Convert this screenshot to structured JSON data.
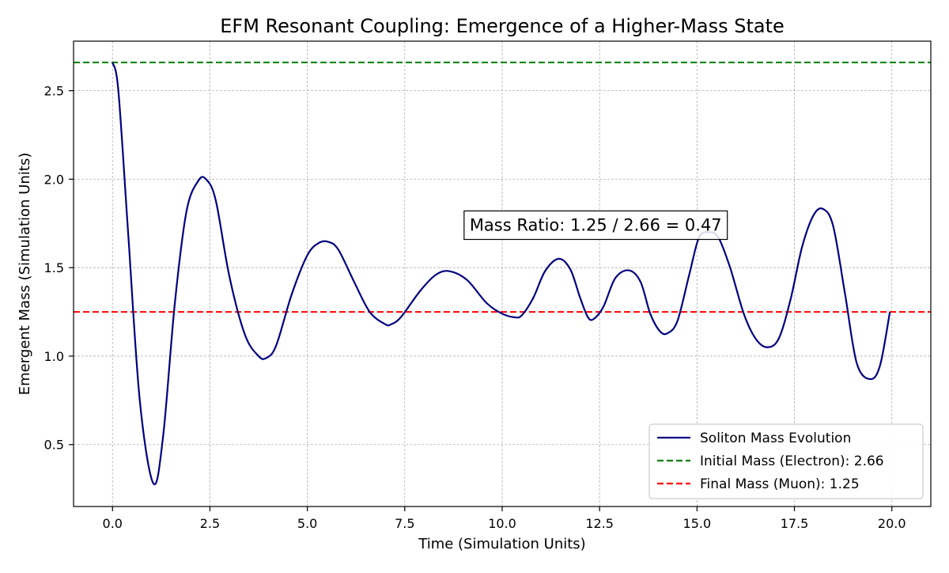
{
  "chart_data": {
    "type": "line",
    "title": "EFM Resonant Coupling: Emergence of a Higher-Mass State",
    "xlabel": "Time (Simulation Units)",
    "ylabel": "Emergent Mass (Simulation Units)",
    "xlim": [
      -1.0,
      21.0
    ],
    "ylim": [
      0.15,
      2.78
    ],
    "xticks": [
      0.0,
      2.5,
      5.0,
      7.5,
      10.0,
      12.5,
      15.0,
      17.5,
      20.0
    ],
    "xtick_labels": [
      "0.0",
      "2.5",
      "5.0",
      "7.5",
      "10.0",
      "12.5",
      "15.0",
      "17.5",
      "20.0"
    ],
    "yticks": [
      0.5,
      1.0,
      1.5,
      2.0,
      2.5
    ],
    "ytick_labels": [
      "0.5",
      "1.0",
      "1.5",
      "2.0",
      "2.5"
    ],
    "grid": true,
    "legend_position": "lower-right",
    "series": [
      {
        "name": "Soliton Mass Evolution",
        "color": "#000080",
        "style": "solid",
        "x": [
          0.0,
          0.15,
          0.4,
          0.7,
          1.05,
          1.3,
          1.6,
          1.9,
          2.2,
          2.4,
          2.65,
          3.0,
          3.4,
          3.75,
          3.95,
          4.2,
          4.6,
          5.0,
          5.3,
          5.55,
          5.8,
          6.2,
          6.6,
          7.0,
          7.15,
          7.4,
          7.9,
          8.3,
          8.65,
          9.1,
          9.6,
          10.0,
          10.3,
          10.5,
          10.8,
          11.1,
          11.45,
          11.75,
          12.0,
          12.2,
          12.35,
          12.6,
          12.9,
          13.25,
          13.55,
          13.8,
          14.05,
          14.25,
          14.5,
          14.8,
          15.05,
          15.3,
          15.55,
          15.85,
          16.2,
          16.5,
          16.8,
          17.1,
          17.4,
          17.7,
          18.0,
          18.25,
          18.5,
          18.8,
          19.1,
          19.45,
          19.7,
          19.95
        ],
        "y": [
          2.66,
          2.5,
          1.7,
          0.75,
          0.28,
          0.55,
          1.3,
          1.82,
          1.99,
          2.0,
          1.88,
          1.45,
          1.12,
          1.0,
          0.99,
          1.06,
          1.35,
          1.57,
          1.64,
          1.645,
          1.6,
          1.42,
          1.25,
          1.18,
          1.18,
          1.22,
          1.37,
          1.46,
          1.48,
          1.43,
          1.3,
          1.24,
          1.22,
          1.23,
          1.33,
          1.48,
          1.55,
          1.49,
          1.33,
          1.22,
          1.21,
          1.28,
          1.44,
          1.485,
          1.42,
          1.24,
          1.14,
          1.13,
          1.2,
          1.46,
          1.67,
          1.7,
          1.67,
          1.5,
          1.24,
          1.1,
          1.05,
          1.1,
          1.32,
          1.62,
          1.8,
          1.83,
          1.73,
          1.35,
          0.96,
          0.87,
          0.95,
          1.25
        ]
      },
      {
        "name": "Initial Mass (Electron): 2.66",
        "color": "#008000",
        "style": "dashed",
        "hline": 2.66
      },
      {
        "name": "Final Mass (Muon): 1.25",
        "color": "#ff0000",
        "style": "dashed",
        "hline": 1.25
      }
    ],
    "annotation": {
      "text": "Mass Ratio: 1.25 / 2.66 = 0.47",
      "x": 12.4,
      "y": 1.74
    }
  }
}
